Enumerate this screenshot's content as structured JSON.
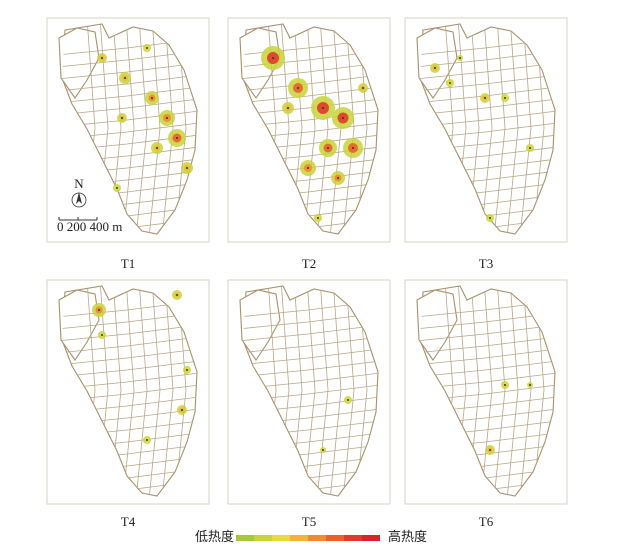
{
  "panels": [
    {
      "label": "T1"
    },
    {
      "label": "T2"
    },
    {
      "label": "T3"
    },
    {
      "label": "T4"
    },
    {
      "label": "T5"
    },
    {
      "label": "T6"
    }
  ],
  "north": "N",
  "scale_bar": "0  200  400 m",
  "legend": {
    "low": "低热度",
    "high": "高热度",
    "colors": [
      "#a6c93a",
      "#c9d43a",
      "#e8dc3a",
      "#f2b33a",
      "#ef8a2e",
      "#e9602a",
      "#e03a2a",
      "#d8232a"
    ]
  }
}
